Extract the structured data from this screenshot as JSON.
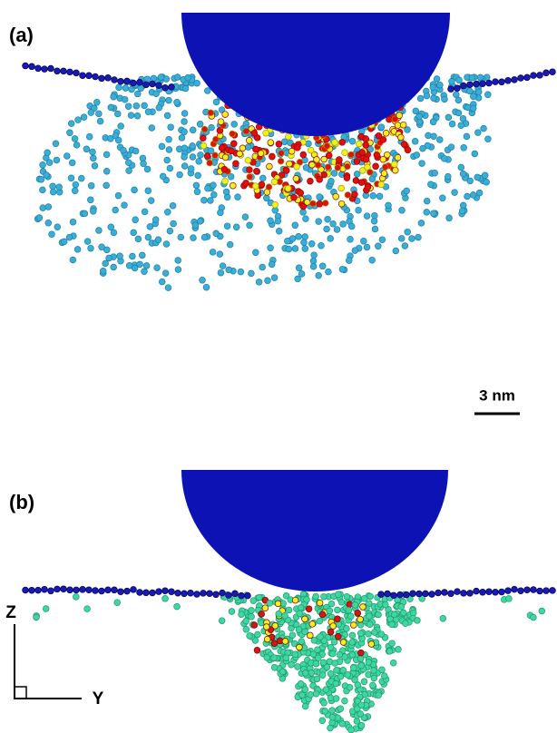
{
  "panels": [
    {
      "label": "(a)"
    },
    {
      "label": "(b)"
    }
  ],
  "scale_bar": {
    "label": "3 nm"
  },
  "axes": {
    "vertical": "Z",
    "horizontal": "Y"
  }
}
